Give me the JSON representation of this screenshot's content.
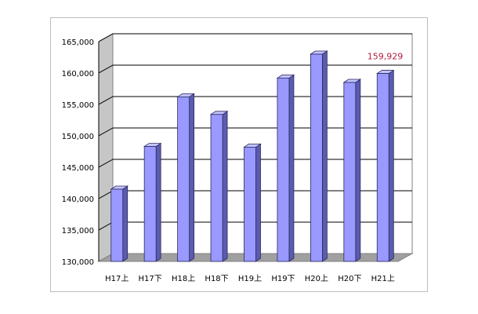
{
  "chart_data": {
    "type": "bar",
    "categories": [
      "H17上",
      "H17下",
      "H18上",
      "H18下",
      "H19上",
      "H19下",
      "H20上",
      "H20下",
      "H21上"
    ],
    "values": [
      141500,
      148300,
      156200,
      153400,
      148200,
      159200,
      163000,
      158500,
      159929
    ],
    "yticks": [
      "130,000",
      "135,000",
      "140,000",
      "145,000",
      "150,000",
      "155,000",
      "160,000",
      "165,000"
    ],
    "ylim": [
      130000,
      165000
    ],
    "grid": true,
    "annotation": {
      "text": "159,929",
      "category": "H21上",
      "color": "#b0203c"
    },
    "colors": {
      "bar_front": "#9999ff",
      "bar_side": "#5c5cae",
      "bar_top": "#c4c4ff",
      "wall": "#c6c6c6",
      "floor": "#a0a0a0",
      "grid": "#000000"
    }
  }
}
